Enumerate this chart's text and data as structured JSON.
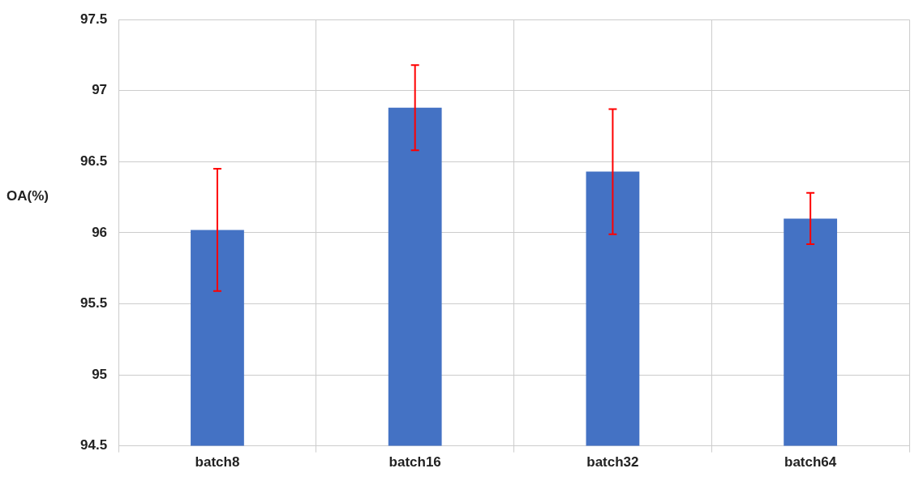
{
  "chart_data": {
    "type": "bar",
    "ylabel": "OA(%)",
    "categories": [
      "batch8",
      "batch16",
      "batch32",
      "batch64"
    ],
    "values": [
      96.02,
      96.88,
      96.43,
      96.1
    ],
    "errors": [
      0.43,
      0.3,
      0.44,
      0.18
    ],
    "color": "#4472c4",
    "ylim": [
      94.5,
      97.5
    ],
    "yticks": [
      94.5,
      95,
      95.5,
      96,
      96.5,
      97,
      97.5
    ],
    "grid": true
  }
}
